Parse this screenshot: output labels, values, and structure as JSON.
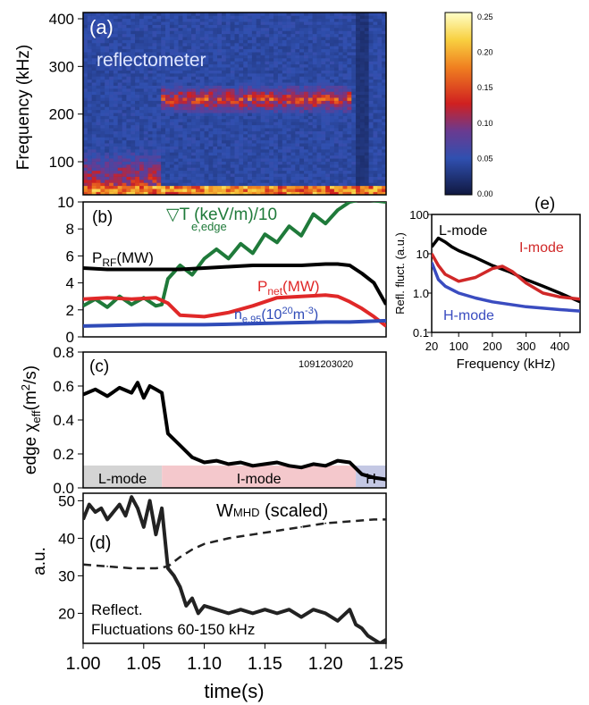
{
  "figure": {
    "xaxis": {
      "label": "time(s)",
      "ticks": [
        "1.00",
        "1.05",
        "1.10",
        "1.15",
        "1.20",
        "1.25"
      ],
      "range": [
        1.0,
        1.25
      ]
    }
  },
  "panel_a": {
    "tag": "(a)",
    "annotation": "reflectometer",
    "ylabel": "Frequency (kHz)",
    "yticks": [
      "400",
      "300",
      "200",
      "100"
    ],
    "colorbar_ticks": [
      "0.25",
      "0.20",
      "0.15",
      "0.10",
      "0.05",
      "0.00"
    ],
    "colors": {
      "low": "#1a1f5c",
      "mid": "#cc2020",
      "high": "#ffff80"
    }
  },
  "panel_b": {
    "tag": "(b)",
    "yticks": [
      "10",
      "8",
      "6",
      "4",
      "2",
      "0"
    ],
    "labels": {
      "gradT_main": "▽T (keV/m)/10",
      "gradT_sub": "e,edge",
      "prf_main": "P",
      "prf_sub": "RF",
      "prf_unit": "(MW)",
      "pnet_main": "P",
      "pnet_sub": "net",
      "pnet_unit": "(MW)",
      "ne_main": "n",
      "ne_sub": "e,95",
      "ne_unit": "(10",
      "ne_exp": "20",
      "ne_unit2": "m",
      "ne_exp2": "-3",
      "ne_close": ")"
    }
  },
  "panel_c": {
    "tag": "(c)",
    "shot": "1091203020",
    "ylabel_main": "edge χ",
    "ylabel_sub": "eff",
    "ylabel_unit": "(m",
    "ylabel_exp": "2",
    "ylabel_close": "/s)",
    "yticks": [
      "0.8",
      "0.6",
      "0.4",
      "0.2",
      "0.0"
    ],
    "regimes": [
      {
        "label": "L-mode",
        "color": "#d4d4d4"
      },
      {
        "label": "I-mode",
        "color": "#f4c8cc"
      },
      {
        "label": "H",
        "color": "#c4c8e4"
      }
    ]
  },
  "panel_d": {
    "tag": "(d)",
    "ylabel": "a.u.",
    "yticks": [
      "50",
      "40",
      "30",
      "20"
    ],
    "wmhd_label": "W",
    "wmhd_sub": "MHD",
    "wmhd_suffix": " (scaled)",
    "refl_label_line1": "Reflect.",
    "refl_label_line2": "Fluctuations 60-150 kHz"
  },
  "panel_e": {
    "tag": "(e)",
    "ylabel": "Refl. fluct. (a.u.)",
    "xlabel": "Frequency (kHz)",
    "yticks": [
      "100",
      "10",
      "1.0",
      "0.1"
    ],
    "xticks": [
      "20",
      "100",
      "200",
      "300",
      "400"
    ],
    "legend": {
      "lmode": "L-mode",
      "imode": "I-mode",
      "hmode": "H-mode"
    }
  },
  "chart_data": [
    {
      "panel": "(a)",
      "type": "heatmap",
      "xlim": [
        1.0,
        1.25
      ],
      "ylim": [
        0,
        400
      ],
      "ylabel": "Frequency (kHz)",
      "colorbar_range": [
        0.0,
        0.25
      ],
      "features": [
        {
          "x_range": [
            1.0,
            1.065
          ],
          "freq_range": [
            0,
            150
          ],
          "level": 0.14
        },
        {
          "x_range": [
            1.065,
            1.22
          ],
          "freq_range": [
            160,
            260
          ],
          "level": 0.16
        },
        {
          "x_range": [
            1.225,
            1.235
          ],
          "freq_range": [
            0,
            400
          ],
          "level": 0.02
        }
      ]
    },
    {
      "panel": "(b)",
      "type": "line",
      "xlim": [
        1.0,
        1.25
      ],
      "ylim": [
        0,
        10
      ],
      "series": [
        {
          "name": "▽T e,edge (keV/m)/10",
          "color": "#1f7a3a",
          "x": [
            1.0,
            1.01,
            1.02,
            1.03,
            1.04,
            1.05,
            1.06,
            1.065,
            1.07,
            1.08,
            1.09,
            1.1,
            1.11,
            1.12,
            1.13,
            1.14,
            1.15,
            1.16,
            1.17,
            1.18,
            1.19,
            1.2,
            1.21,
            1.22,
            1.23,
            1.25
          ],
          "y": [
            2.3,
            2.8,
            2.2,
            3.0,
            2.4,
            2.9,
            2.3,
            2.4,
            4.3,
            5.3,
            4.6,
            5.8,
            6.5,
            5.8,
            6.9,
            6.2,
            7.6,
            7.0,
            8.2,
            7.5,
            9.1,
            8.4,
            9.4,
            10.0,
            10.2,
            10.0
          ]
        },
        {
          "name": "P RF (MW)",
          "color": "#000000",
          "x": [
            1.0,
            1.02,
            1.04,
            1.06,
            1.08,
            1.1,
            1.12,
            1.14,
            1.16,
            1.18,
            1.2,
            1.21,
            1.22,
            1.23,
            1.24,
            1.25
          ],
          "y": [
            5.1,
            5.0,
            5.0,
            5.0,
            5.0,
            5.1,
            5.2,
            5.3,
            5.3,
            5.3,
            5.4,
            5.4,
            5.3,
            4.7,
            4.0,
            2.4
          ]
        },
        {
          "name": "P net (MW)",
          "color": "#e02828",
          "x": [
            1.0,
            1.02,
            1.04,
            1.06,
            1.07,
            1.08,
            1.1,
            1.12,
            1.14,
            1.16,
            1.18,
            1.2,
            1.21,
            1.22,
            1.23,
            1.24,
            1.25
          ],
          "y": [
            2.8,
            2.9,
            2.8,
            2.9,
            2.5,
            1.6,
            1.5,
            1.8,
            2.3,
            2.9,
            3.0,
            3.1,
            3.0,
            2.6,
            2.1,
            1.5,
            0.8
          ]
        },
        {
          "name": "n e,95 (10^20 m^-3)",
          "color": "#2f4bb8",
          "x": [
            1.0,
            1.05,
            1.1,
            1.15,
            1.2,
            1.22,
            1.25
          ],
          "y": [
            0.8,
            0.9,
            0.9,
            1.0,
            1.1,
            1.1,
            1.2
          ]
        }
      ]
    },
    {
      "panel": "(c)",
      "type": "line",
      "xlim": [
        1.0,
        1.25
      ],
      "ylim": [
        0,
        0.8
      ],
      "series": [
        {
          "name": "edge χ eff (m^2/s)",
          "color": "#000000",
          "x": [
            1.0,
            1.01,
            1.02,
            1.03,
            1.04,
            1.045,
            1.05,
            1.055,
            1.06,
            1.065,
            1.07,
            1.08,
            1.09,
            1.1,
            1.11,
            1.12,
            1.13,
            1.14,
            1.15,
            1.16,
            1.17,
            1.18,
            1.19,
            1.2,
            1.21,
            1.22,
            1.23,
            1.24,
            1.25
          ],
          "y": [
            0.55,
            0.58,
            0.54,
            0.59,
            0.56,
            0.62,
            0.53,
            0.6,
            0.58,
            0.56,
            0.32,
            0.25,
            0.18,
            0.15,
            0.16,
            0.14,
            0.15,
            0.13,
            0.14,
            0.15,
            0.13,
            0.12,
            0.14,
            0.13,
            0.16,
            0.15,
            0.08,
            0.06,
            0.05
          ]
        }
      ],
      "regions": [
        {
          "label": "L-mode",
          "x_range": [
            1.0,
            1.065
          ]
        },
        {
          "label": "I-mode",
          "x_range": [
            1.065,
            1.225
          ]
        },
        {
          "label": "H",
          "x_range": [
            1.225,
            1.25
          ]
        }
      ]
    },
    {
      "panel": "(d)",
      "type": "line",
      "xlim": [
        1.0,
        1.25
      ],
      "ylim": [
        12,
        52
      ],
      "series": [
        {
          "name": "Reflect. Fluctuations 60-150 kHz",
          "color": "#222222",
          "x": [
            1.0,
            1.005,
            1.01,
            1.015,
            1.02,
            1.03,
            1.035,
            1.04,
            1.045,
            1.05,
            1.055,
            1.06,
            1.065,
            1.07,
            1.075,
            1.08,
            1.085,
            1.09,
            1.095,
            1.1,
            1.11,
            1.12,
            1.13,
            1.14,
            1.15,
            1.16,
            1.17,
            1.18,
            1.19,
            1.2,
            1.21,
            1.22,
            1.225,
            1.23,
            1.235,
            1.24,
            1.245,
            1.25
          ],
          "y": [
            45,
            49,
            47,
            48,
            45,
            49,
            46,
            51,
            48,
            43,
            50,
            41,
            48,
            32,
            30,
            27,
            22,
            24,
            20,
            22,
            21,
            20,
            21,
            20,
            21,
            20,
            21,
            19,
            21,
            20,
            18,
            21,
            17,
            16,
            14,
            13,
            12,
            13
          ]
        },
        {
          "name": "W MHD (scaled)",
          "color": "#222222",
          "style": "dashed",
          "x": [
            1.0,
            1.02,
            1.04,
            1.06,
            1.07,
            1.08,
            1.09,
            1.1,
            1.12,
            1.14,
            1.16,
            1.18,
            1.2,
            1.22,
            1.24,
            1.25
          ],
          "y": [
            33,
            32.5,
            32,
            32,
            32.5,
            35,
            37,
            38.5,
            40,
            41,
            42,
            43,
            44,
            44.5,
            45,
            45
          ]
        }
      ]
    },
    {
      "panel": "(e)",
      "type": "line",
      "xlabel": "Frequency (kHz)",
      "ylabel": "Refl. fluct. (a.u.)",
      "xlim": [
        20,
        460
      ],
      "ylim": [
        0.1,
        100
      ],
      "yscale": "log",
      "series": [
        {
          "name": "L-mode",
          "color": "#000000",
          "x": [
            20,
            40,
            60,
            80,
            100,
            150,
            200,
            250,
            300,
            350,
            400,
            460
          ],
          "y": [
            15,
            25,
            20,
            15,
            12,
            8,
            5,
            3.5,
            2.2,
            1.5,
            1.0,
            0.6
          ]
        },
        {
          "name": "I-mode",
          "color": "#d02828",
          "x": [
            20,
            40,
            60,
            100,
            150,
            200,
            230,
            260,
            300,
            350,
            400,
            460
          ],
          "y": [
            10,
            5,
            3,
            2.0,
            2.5,
            4.2,
            4.8,
            3.5,
            1.8,
            1.0,
            0.8,
            0.7
          ]
        },
        {
          "name": "H-mode",
          "color": "#3a4cc0",
          "x": [
            20,
            40,
            60,
            100,
            150,
            200,
            300,
            400,
            460
          ],
          "y": [
            6,
            2.2,
            1.5,
            1.0,
            0.75,
            0.6,
            0.45,
            0.38,
            0.35
          ]
        }
      ]
    }
  ]
}
